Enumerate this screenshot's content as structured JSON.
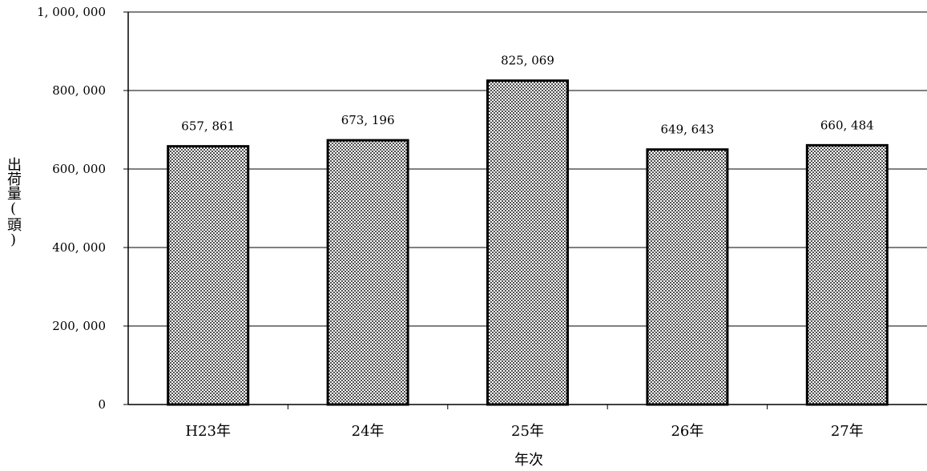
{
  "chart_data": {
    "type": "bar",
    "categories": [
      "H23年",
      "24年",
      "25年",
      "26年",
      "27年"
    ],
    "values": [
      657861,
      673196,
      825069,
      649643,
      660484
    ],
    "value_labels": [
      "657, 861",
      "673, 196",
      "825, 069",
      "649, 643",
      "660, 484"
    ],
    "title": "",
    "xlabel": "年次",
    "ylabel": "出荷量(頭)",
    "ylim": [
      0,
      1000000
    ],
    "yticks": [
      0,
      200000,
      400000,
      600000,
      800000,
      1000000
    ],
    "ytick_labels": [
      "0",
      "200, 000",
      "400, 000",
      "600, 000",
      "800, 000",
      "1, 000, 000"
    ],
    "grid": true,
    "legend": "none",
    "bar_fill": "#808080",
    "bar_stroke": "#000000"
  }
}
